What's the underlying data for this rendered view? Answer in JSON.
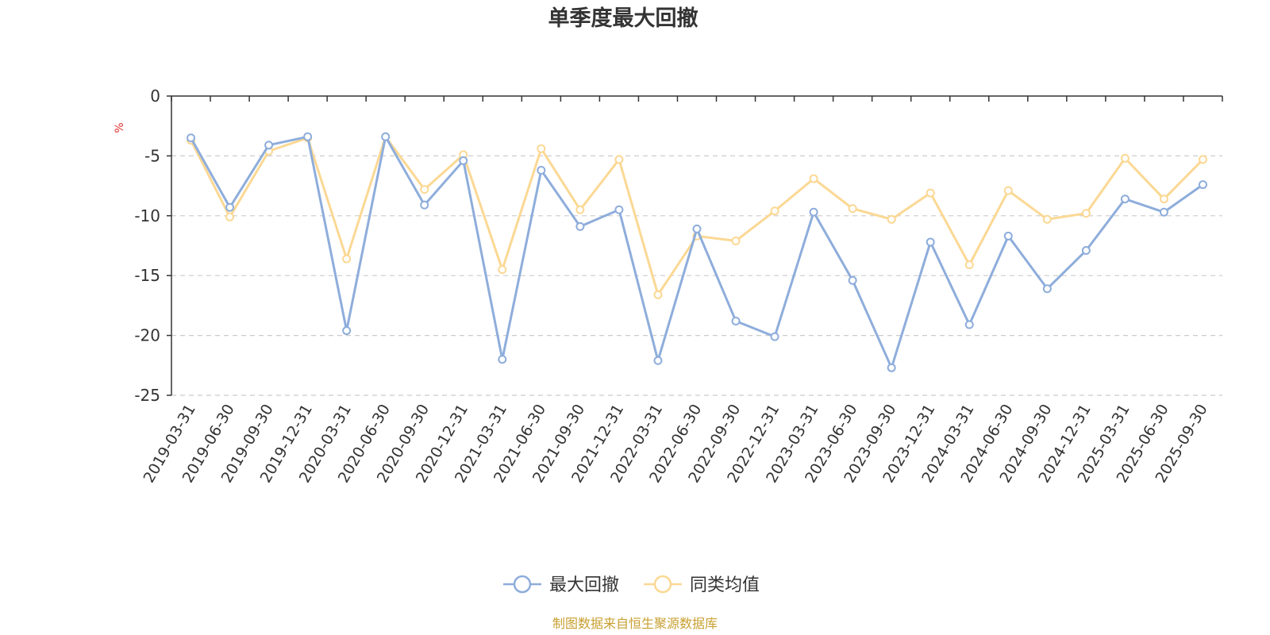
{
  "chart_data": {
    "type": "line",
    "title": "单季度最大回撤",
    "ylabel": "%",
    "xlabel": "",
    "ylim": [
      -25,
      0
    ],
    "yticks": [
      0,
      -5,
      -10,
      -15,
      -20,
      -25
    ],
    "grid": true,
    "categories": [
      "2019-03-31",
      "2019-06-30",
      "2019-09-30",
      "2019-12-31",
      "2020-03-31",
      "2020-06-30",
      "2020-09-30",
      "2020-12-31",
      "2021-03-31",
      "2021-06-30",
      "2021-09-30",
      "2021-12-31",
      "2022-03-31",
      "2022-06-30",
      "2022-09-30",
      "2022-12-31",
      "2023-03-31",
      "2023-06-30",
      "2023-09-30",
      "2023-12-31",
      "2024-03-31",
      "2024-06-30",
      "2024-09-30",
      "2024-12-31",
      "2025-03-31",
      "2025-06-30",
      "2025-09-30"
    ],
    "series": [
      {
        "name": "最大回撤",
        "color": "#8eaddb",
        "values": [
          -3.5,
          -9.3,
          -4.1,
          -3.4,
          -19.6,
          -3.4,
          -9.1,
          -5.4,
          -22.0,
          -6.2,
          -10.9,
          -9.5,
          -22.1,
          -11.1,
          -18.8,
          -20.1,
          -9.7,
          -15.4,
          -22.7,
          -12.2,
          -19.1,
          -11.7,
          -16.1,
          -12.9,
          -8.6,
          -9.7,
          -7.4
        ]
      },
      {
        "name": "同类均值",
        "color": "#fbd894",
        "values": [
          -3.7,
          -10.1,
          -4.6,
          -3.5,
          -13.6,
          -3.4,
          -7.8,
          -4.9,
          -14.5,
          -4.4,
          -9.5,
          -5.3,
          -16.6,
          -11.7,
          -12.1,
          -9.6,
          -6.9,
          -9.4,
          -10.3,
          -8.1,
          -14.1,
          -7.9,
          -10.3,
          -9.8,
          -5.2,
          -8.6,
          -5.3
        ]
      }
    ],
    "legend_position": "bottom-center",
    "source_text": "制图数据来自恒生聚源数据库",
    "source_color": "#c8a032",
    "unit_color": "#e03030"
  }
}
